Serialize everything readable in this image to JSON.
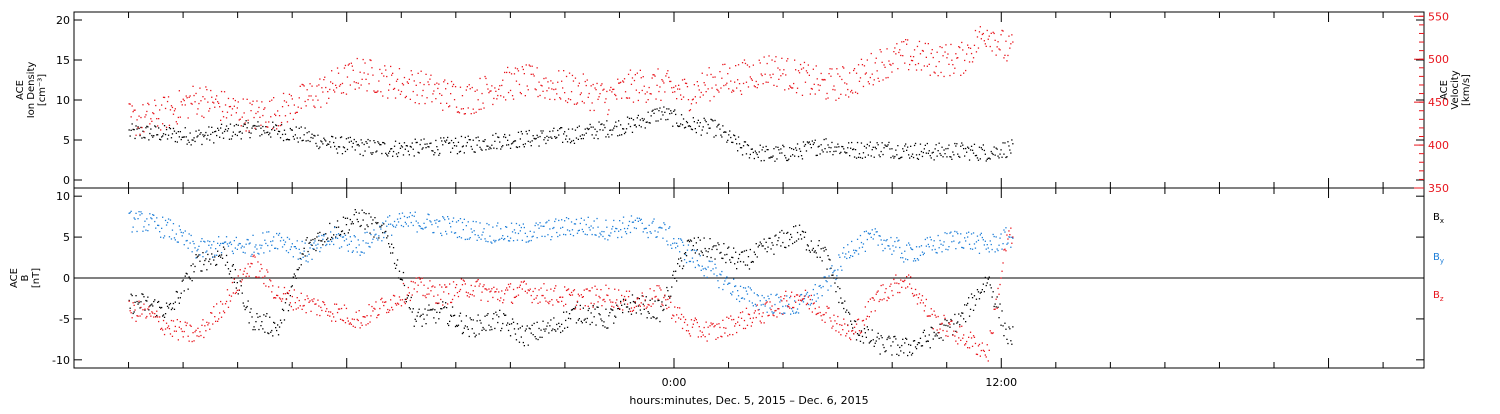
{
  "colors": {
    "black": "#000000",
    "red": "#e8141c",
    "blue": "#1f7fd8"
  },
  "chart_data": [
    {
      "type": "scatter",
      "panel": "top",
      "ylabel_lines": [
        "ACE",
        "Ion Density",
        "[cm⁻³]"
      ],
      "y2label_lines": [
        "ACE",
        "Velocity",
        "[km/s]"
      ],
      "ylim": [
        -1,
        21
      ],
      "yticks": [
        0,
        5,
        10,
        15,
        20
      ],
      "y2lim": [
        350,
        555
      ],
      "y2ticks": [
        350,
        400,
        450,
        500,
        550
      ],
      "series": [
        {
          "key": "density",
          "axis": "left",
          "color": "black",
          "x": [
            -19.5,
            -18.5,
            -17.5,
            -16.5,
            -15.5,
            -14.5,
            -13.5,
            -12.5,
            -11.5,
            -10.5,
            -9.5,
            -8.5,
            -7.5,
            -6.5,
            -5.5,
            -4.5,
            -3.5,
            -2.5,
            -1.5,
            -0.5,
            0.5,
            1.5,
            2.5,
            3.5,
            4.5,
            5.5,
            6.5,
            7.5,
            8.5,
            9.5,
            10.5,
            11.5,
            12.2
          ],
          "y": [
            6,
            5.8,
            5.5,
            6,
            6.5,
            6.2,
            5.5,
            4.5,
            4.2,
            4.0,
            4.1,
            4.3,
            4.5,
            5.0,
            5.2,
            5.5,
            5.8,
            6.5,
            7,
            8.5,
            7,
            6.5,
            4,
            3.2,
            3.6,
            4.5,
            3.8,
            4.0,
            3.8,
            3.6,
            3.7,
            3.5,
            4.0
          ]
        },
        {
          "key": "velocity",
          "axis": "right",
          "color": "red",
          "x": [
            -19.5,
            -18.5,
            -17.5,
            -16.5,
            -15.5,
            -14.5,
            -13.5,
            -12.5,
            -11.5,
            -10.5,
            -9.5,
            -8.5,
            -7.5,
            -6.5,
            -5.5,
            -4.5,
            -3.5,
            -2.5,
            -1.5,
            -0.5,
            0.5,
            1.5,
            2.5,
            3.5,
            4.5,
            5.5,
            6.5,
            7.5,
            8.5,
            9.5,
            10.5,
            11.5,
            12.2
          ],
          "y": [
            430,
            440,
            455,
            445,
            435,
            440,
            455,
            470,
            485,
            475,
            470,
            460,
            455,
            470,
            475,
            470,
            465,
            455,
            470,
            470,
            460,
            475,
            480,
            490,
            480,
            470,
            475,
            495,
            505,
            500,
            500,
            535,
            510
          ]
        }
      ]
    },
    {
      "type": "scatter",
      "panel": "bottom",
      "ylabel_lines": [
        "ACE",
        "B",
        "[nT]"
      ],
      "ylim": [
        -11,
        11
      ],
      "yticks": [
        -10,
        -5,
        0,
        5,
        10
      ],
      "series": [
        {
          "name": "Bx",
          "label_main": "B",
          "label_sub": "x",
          "color": "black",
          "x": [
            -19.5,
            -18.5,
            -17.5,
            -16.5,
            -15.5,
            -14.5,
            -13.5,
            -12.5,
            -11.5,
            -10.5,
            -9.5,
            -8.5,
            -7.5,
            -6.5,
            -5.5,
            -4.5,
            -3.5,
            -2.5,
            -1.5,
            -0.5,
            0.5,
            1.5,
            2.5,
            3.5,
            4.5,
            5.5,
            6.5,
            7.5,
            8.5,
            9.5,
            10.5,
            11.5,
            12.2
          ],
          "y": [
            -3,
            -4,
            2,
            3,
            -5,
            -6,
            4,
            6,
            7.5,
            5,
            -5,
            -4,
            -6,
            -5,
            -7,
            -6,
            -4,
            -5,
            -3,
            -4,
            4,
            3.5,
            2,
            4,
            5.5,
            3,
            -6,
            -8,
            -8.5,
            -7,
            -5,
            0,
            -7
          ]
        },
        {
          "name": "By",
          "label_main": "B",
          "label_sub": "y",
          "color": "blue",
          "x": [
            -19.5,
            -18.5,
            -17.5,
            -16.5,
            -15.5,
            -14.5,
            -13.5,
            -12.5,
            -11.5,
            -10.5,
            -9.5,
            -8.5,
            -7.5,
            -6.5,
            -5.5,
            -4.5,
            -3.5,
            -2.5,
            -1.5,
            -0.5,
            0.5,
            1.5,
            2.5,
            3.5,
            4.5,
            5.5,
            6.5,
            7.5,
            8.5,
            9.5,
            10.5,
            11.5,
            12.2
          ],
          "y": [
            7,
            6,
            3.5,
            4,
            4,
            5,
            3,
            5,
            4,
            6.5,
            7,
            6.5,
            6,
            5.5,
            5.5,
            6,
            6.5,
            6,
            6.5,
            6,
            3,
            0.5,
            -2,
            -3,
            -3.5,
            -1,
            4,
            5,
            3,
            4,
            5,
            4,
            5
          ]
        },
        {
          "name": "Bz",
          "label_main": "B",
          "label_sub": "z",
          "color": "red",
          "x": [
            -19.5,
            -18.5,
            -17.5,
            -16.5,
            -15.5,
            -14.5,
            -13.5,
            -12.5,
            -11.5,
            -10.5,
            -9.5,
            -8.5,
            -7.5,
            -6.5,
            -5.5,
            -4.5,
            -3.5,
            -2.5,
            -1.5,
            -0.5,
            0.5,
            1.5,
            2.5,
            3.5,
            4.5,
            5.5,
            6.5,
            7.5,
            8.5,
            9.5,
            10.5,
            11.5,
            12.2
          ],
          "y": [
            -4,
            -6,
            -7,
            -3,
            2,
            -2,
            -3,
            -4,
            -5,
            -3,
            -1,
            -2,
            -1,
            -2,
            -1.5,
            -2,
            -2.5,
            -2,
            -3,
            -2,
            -6,
            -6.5,
            -5,
            -4,
            -2,
            -4,
            -7,
            -2,
            0,
            -5,
            -7,
            -9,
            5
          ]
        }
      ]
    }
  ],
  "xaxis": {
    "range": [
      -22,
      27.5
    ],
    "tick_labels": [
      {
        "x": 0,
        "label": "0:00"
      },
      {
        "x": 12,
        "label": "12:00"
      }
    ],
    "minor_step": 2,
    "title": "hours:minutes, Dec.  5, 2015 – Dec.  6, 2015"
  }
}
